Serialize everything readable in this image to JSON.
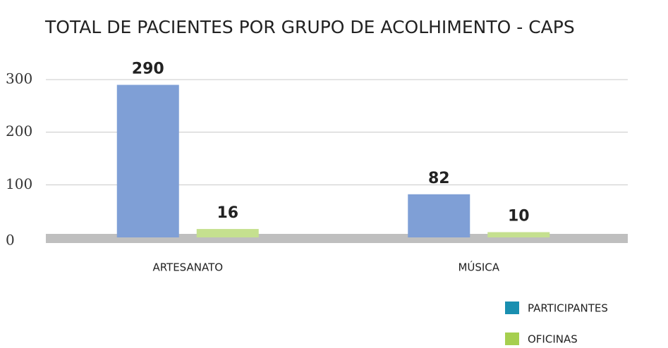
{
  "chart_data": {
    "type": "bar",
    "title": "TOTAL DE PACIENTES POR GRUPO DE ACOLHIMENTO - CAPS",
    "categories": [
      "ARTESANATO",
      "MÚSICA"
    ],
    "series": [
      {
        "name": "PARTICIPANTES",
        "color": "#7f9fd6",
        "legend_color": "#1a8fb0",
        "values": [
          290,
          82
        ]
      },
      {
        "name": "OFICINAS",
        "color": "#c5e08f",
        "legend_color": "#a6cf4f",
        "values": [
          16,
          10
        ]
      }
    ],
    "ylim": [
      0,
      300
    ],
    "yticks": [
      0,
      100,
      200,
      300
    ],
    "grid": true,
    "legend": "bottom-right"
  }
}
